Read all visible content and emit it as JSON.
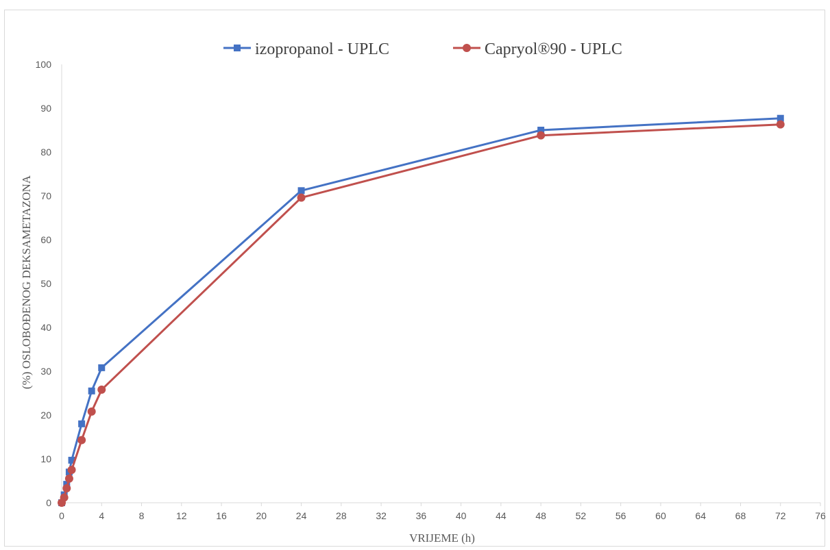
{
  "chart_data": {
    "type": "line",
    "xlabel": "VRIJEME (h)",
    "ylabel": "(%) OSLOBOĐENOG DEKSAMETAZONA",
    "xlim": [
      0,
      76
    ],
    "ylim": [
      0,
      100
    ],
    "x_ticks": [
      0,
      4,
      8,
      12,
      16,
      20,
      24,
      28,
      32,
      36,
      40,
      44,
      48,
      52,
      56,
      60,
      64,
      68,
      72,
      76
    ],
    "y_ticks": [
      0,
      10,
      20,
      30,
      40,
      50,
      60,
      70,
      80,
      90,
      100
    ],
    "grid": false,
    "legend_position": "top",
    "series": [
      {
        "name": "izopropanol - UPLC",
        "color": "#4472c4",
        "marker": "square",
        "x": [
          0,
          0.25,
          0.5,
          0.75,
          1,
          2,
          3,
          4,
          24,
          48,
          72
        ],
        "y": [
          0,
          1.8,
          4.2,
          7,
          9.7,
          18,
          25.5,
          30.8,
          71.2,
          85,
          87.7
        ]
      },
      {
        "name": "Capryol®90 - UPLC",
        "color": "#c0504d",
        "marker": "circle",
        "x": [
          0,
          0.25,
          0.5,
          0.75,
          1,
          2,
          3,
          4,
          24,
          48,
          72
        ],
        "y": [
          0,
          1.2,
          3.3,
          5.5,
          7.5,
          14.3,
          20.8,
          25.8,
          69.6,
          83.8,
          86.3
        ]
      }
    ]
  }
}
